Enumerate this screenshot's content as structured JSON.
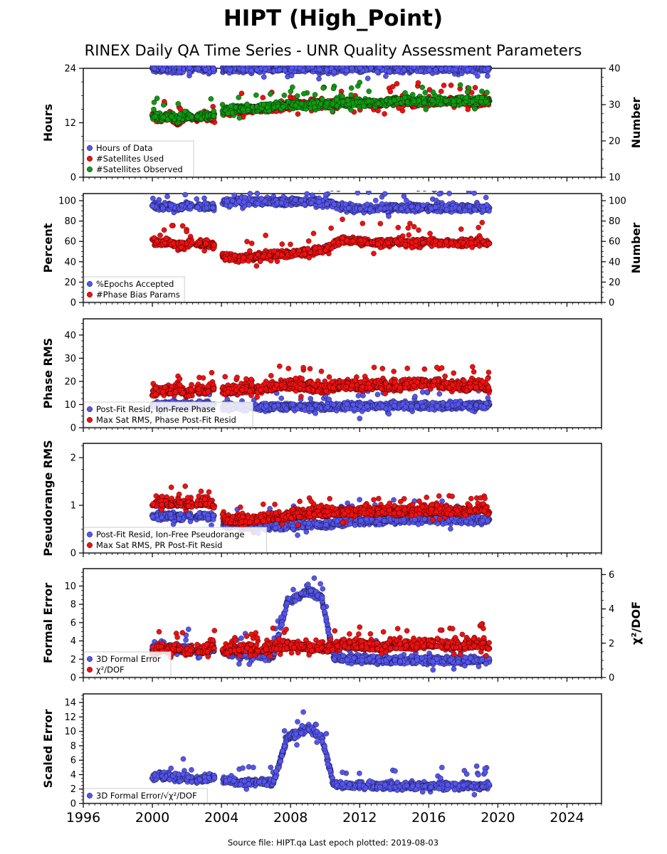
{
  "title": "HIPT (High_Point)",
  "subtitle": "RINEX Daily QA Time Series - UNR Quality Assessment Parameters",
  "footer": "Source file: HIPT.qa Last epoch plotted: 2019-08-03",
  "colors": {
    "blue": "#5555ee",
    "red": "#ee1111",
    "green": "#119911",
    "edge": "#000000"
  },
  "chart_data": [
    {
      "type": "scatter",
      "x_label_ticks": [
        "1996",
        "2000",
        "2004",
        "2008",
        "2012",
        "2016",
        "2020",
        "2024"
      ],
      "xlim": [
        1996,
        2026
      ],
      "ylabel": "Hours",
      "ylim": [
        0,
        24
      ],
      "yticks": [
        "0",
        "12",
        "24"
      ],
      "y2label": "Number",
      "y2lim": [
        10,
        40
      ],
      "y2ticks": [
        "10",
        "20",
        "30",
        "40"
      ],
      "legend": [
        "Hours of Data",
        "#Satellites Used",
        "#Satellites Observed"
      ],
      "legend_position": "lower-left",
      "series": [
        {
          "name": "Hours of Data",
          "color": "blue",
          "axis": "left",
          "x": [
            2000.0,
            2000.5,
            2001.0,
            2001.5,
            2002.0,
            2002.5,
            2003.0,
            2003.5,
            2004.2,
            2005.0,
            2006.0,
            2007.0,
            2008.0,
            2009.0,
            2010.0,
            2011.0,
            2012.0,
            2013.0,
            2014.0,
            2015.0,
            2016.0,
            2017.0,
            2018.0,
            2019.0,
            2019.5
          ],
          "y": [
            24,
            23.8,
            24,
            23.5,
            24,
            23.9,
            24,
            23.7,
            24,
            24,
            23.8,
            24,
            23.9,
            24,
            23.6,
            24,
            23.8,
            24,
            23.9,
            24,
            23.7,
            24,
            24,
            23.9,
            24
          ]
        },
        {
          "name": "#Satellites Used",
          "color": "red",
          "axis": "right",
          "x": [
            2000.0,
            2000.5,
            2001.0,
            2001.5,
            2002.0,
            2002.5,
            2003.0,
            2003.5,
            2004.2,
            2005.0,
            2006.0,
            2007.0,
            2008.0,
            2009.0,
            2010.0,
            2011.0,
            2012.0,
            2013.0,
            2014.0,
            2015.0,
            2016.0,
            2017.0,
            2018.0,
            2019.0,
            2019.5
          ],
          "y": [
            27,
            26,
            27,
            25,
            27,
            26,
            27,
            26,
            28,
            28.5,
            29,
            29,
            30,
            30,
            30,
            30.5,
            30.5,
            30,
            31,
            30.5,
            30.5,
            31,
            31,
            30.5,
            31
          ]
        },
        {
          "name": "#Satellites Observed",
          "color": "green",
          "axis": "right",
          "x": [
            2000.0,
            2000.5,
            2001.0,
            2001.5,
            2002.0,
            2002.5,
            2003.0,
            2003.5,
            2004.2,
            2005.0,
            2006.0,
            2007.0,
            2008.0,
            2009.0,
            2010.0,
            2011.0,
            2012.0,
            2013.0,
            2014.0,
            2015.0,
            2016.0,
            2017.0,
            2018.0,
            2019.0,
            2019.5
          ],
          "y": [
            27,
            26.5,
            27,
            26,
            27,
            26.5,
            27,
            27,
            28.5,
            29,
            29,
            29.5,
            30,
            30,
            30,
            30.5,
            30.5,
            30.5,
            31,
            31,
            31,
            31,
            31,
            31,
            31
          ]
        }
      ]
    },
    {
      "type": "scatter",
      "x_label_ticks": [
        "1996",
        "2000",
        "2004",
        "2008",
        "2012",
        "2016",
        "2020",
        "2024"
      ],
      "xlim": [
        1996,
        2026
      ],
      "ylabel": "Percent",
      "ylim": [
        0,
        107
      ],
      "yticks": [
        "0",
        "20",
        "40",
        "60",
        "80",
        "100"
      ],
      "y2label": "Number",
      "y2lim": [
        0,
        107
      ],
      "y2ticks": [
        "0",
        "20",
        "40",
        "60",
        "80",
        "100"
      ],
      "legend": [
        "%Epochs Accepted",
        "#Phase Bias Params"
      ],
      "legend_position": "lower-left",
      "series": [
        {
          "name": "%Epochs Accepted",
          "color": "blue",
          "axis": "left",
          "x": [
            2000.0,
            2000.5,
            2001.0,
            2001.5,
            2002.0,
            2002.5,
            2003.0,
            2003.5,
            2004.2,
            2005.0,
            2006.0,
            2007.0,
            2008.0,
            2009.0,
            2010.0,
            2011.0,
            2012.0,
            2013.0,
            2014.0,
            2015.0,
            2016.0,
            2017.0,
            2018.0,
            2019.0,
            2019.5
          ],
          "y": [
            95,
            94,
            95,
            93,
            95,
            94,
            95,
            94,
            99,
            99,
            99,
            99,
            99,
            99,
            98,
            93,
            93,
            92,
            93,
            93,
            93,
            93,
            93,
            93,
            93
          ]
        },
        {
          "name": "#Phase Bias Params",
          "color": "red",
          "axis": "right",
          "x": [
            2000.0,
            2000.5,
            2001.0,
            2001.5,
            2002.0,
            2002.5,
            2003.0,
            2003.5,
            2004.2,
            2005.0,
            2006.0,
            2007.0,
            2008.0,
            2009.0,
            2010.0,
            2011.0,
            2012.0,
            2013.0,
            2014.0,
            2015.0,
            2016.0,
            2017.0,
            2018.0,
            2019.0,
            2019.5
          ],
          "y": [
            62,
            58,
            60,
            55,
            58,
            57,
            58,
            56,
            45,
            44,
            45,
            47,
            48,
            50,
            52,
            62,
            60,
            58,
            60,
            58,
            60,
            58,
            58,
            60,
            58
          ]
        }
      ]
    },
    {
      "type": "scatter",
      "x_label_ticks": [
        "1996",
        "2000",
        "2004",
        "2008",
        "2012",
        "2016",
        "2020",
        "2024"
      ],
      "xlim": [
        1996,
        2026
      ],
      "ylabel": "Phase RMS",
      "ylim": [
        0,
        47
      ],
      "yticks": [
        "0",
        "10",
        "20",
        "30",
        "40"
      ],
      "legend": [
        "Post-Fit Resid, Ion-Free Phase",
        "Max Sat RMS, Phase Post-Fit Resid"
      ],
      "legend_position": "lower-left",
      "series": [
        {
          "name": "Post-Fit Resid, Ion-Free Phase",
          "color": "blue",
          "axis": "left",
          "x": [
            2000.0,
            2000.5,
            2001.0,
            2001.5,
            2002.0,
            2002.5,
            2003.0,
            2003.5,
            2004.2,
            2005.0,
            2006.0,
            2007.0,
            2008.0,
            2009.0,
            2010.0,
            2011.0,
            2012.0,
            2013.0,
            2014.0,
            2015.0,
            2016.0,
            2017.0,
            2018.0,
            2019.0,
            2019.5
          ],
          "y": [
            10,
            9.5,
            10,
            9.5,
            10,
            9.5,
            10,
            9.5,
            9,
            9,
            9,
            9,
            9,
            9,
            9,
            9.5,
            9.5,
            9.5,
            9.5,
            9.5,
            9.5,
            9.5,
            9.5,
            9.5,
            10
          ]
        },
        {
          "name": "Max Sat RMS, Phase Post-Fit Resid",
          "color": "red",
          "axis": "left",
          "x": [
            2000.0,
            2000.5,
            2001.0,
            2001.5,
            2002.0,
            2002.5,
            2003.0,
            2003.5,
            2004.2,
            2005.0,
            2006.0,
            2007.0,
            2008.0,
            2009.0,
            2010.0,
            2011.0,
            2012.0,
            2013.0,
            2014.0,
            2015.0,
            2016.0,
            2017.0,
            2018.0,
            2019.0,
            2019.5
          ],
          "y": [
            14,
            16,
            15,
            17,
            14,
            16,
            15,
            17,
            15,
            16,
            16,
            17,
            18,
            17,
            16,
            18,
            17,
            18,
            17,
            18,
            19,
            18,
            17,
            18,
            16
          ]
        }
      ]
    },
    {
      "type": "scatter",
      "x_label_ticks": [
        "1996",
        "2000",
        "2004",
        "2008",
        "2012",
        "2016",
        "2020",
        "2024"
      ],
      "xlim": [
        1996,
        2026
      ],
      "ylabel": "Pseudorange RMS",
      "ylim": [
        0,
        2.3
      ],
      "yticks": [
        "0",
        "1",
        "2"
      ],
      "legend": [
        "Post-Fit Resid, Ion-Free Pseudorange",
        "Max Sat RMS, PR Post-Fit Resid"
      ],
      "legend_position": "lower-left",
      "series": [
        {
          "name": "Post-Fit Resid, Ion-Free Pseudorange",
          "color": "blue",
          "axis": "left",
          "x": [
            2000.0,
            2000.5,
            2001.0,
            2001.5,
            2002.0,
            2002.5,
            2003.0,
            2003.5,
            2004.2,
            2005.0,
            2006.0,
            2007.0,
            2008.0,
            2009.0,
            2010.0,
            2011.0,
            2012.0,
            2013.0,
            2014.0,
            2015.0,
            2016.0,
            2017.0,
            2018.0,
            2019.0,
            2019.5
          ],
          "y": [
            0.78,
            0.76,
            0.78,
            0.75,
            0.78,
            0.76,
            0.78,
            0.75,
            0.6,
            0.58,
            0.57,
            0.56,
            0.56,
            0.58,
            0.6,
            0.65,
            0.67,
            0.68,
            0.69,
            0.7,
            0.7,
            0.7,
            0.7,
            0.7,
            0.7
          ]
        },
        {
          "name": "Max Sat RMS, PR Post-Fit Resid",
          "color": "red",
          "axis": "left",
          "x": [
            2000.0,
            2000.5,
            2001.0,
            2001.5,
            2002.0,
            2002.5,
            2003.0,
            2003.5,
            2004.2,
            2005.0,
            2006.0,
            2007.0,
            2008.0,
            2009.0,
            2010.0,
            2011.0,
            2012.0,
            2013.0,
            2014.0,
            2015.0,
            2016.0,
            2017.0,
            2018.0,
            2019.0,
            2019.5
          ],
          "y": [
            1.0,
            1.05,
            1.0,
            1.05,
            1.0,
            1.0,
            1.05,
            1.0,
            0.65,
            0.65,
            0.68,
            0.72,
            0.75,
            0.8,
            0.82,
            0.82,
            0.84,
            0.85,
            0.85,
            0.85,
            0.85,
            0.85,
            0.85,
            0.9,
            0.85
          ]
        }
      ]
    },
    {
      "type": "scatter",
      "x_label_ticks": [
        "1996",
        "2000",
        "2004",
        "2008",
        "2012",
        "2016",
        "2020",
        "2024"
      ],
      "xlim": [
        1996,
        2026
      ],
      "ylabel": "Formal Error",
      "ylim": [
        0,
        11.9
      ],
      "yticks": [
        "0",
        "2",
        "4",
        "6",
        "8",
        "10"
      ],
      "y2label": "χ²/DOF",
      "y2lim": [
        0,
        6.35
      ],
      "y2ticks": [
        "0",
        "2",
        "4",
        "6"
      ],
      "legend": [
        "3D Formal Error",
        "χ²/DOF"
      ],
      "legend_position": "lower-left",
      "series": [
        {
          "name": "3D Formal Error",
          "color": "blue",
          "axis": "left",
          "x": [
            2000.0,
            2000.5,
            2001.0,
            2001.5,
            2002.0,
            2002.5,
            2003.0,
            2003.5,
            2004.2,
            2005.0,
            2006.0,
            2007.0,
            2007.8,
            2008.2,
            2008.6,
            2009.0,
            2009.4,
            2009.8,
            2010.5,
            2011.0,
            2012.0,
            2013.0,
            2014.0,
            2015.0,
            2016.0,
            2017.0,
            2018.0,
            2019.0,
            2019.5
          ],
          "y": [
            3.0,
            3.5,
            3.2,
            3.0,
            3.2,
            2.8,
            3.0,
            3.2,
            2.8,
            2.5,
            2.5,
            2.3,
            8.2,
            8.6,
            9.0,
            9.5,
            9.2,
            8.8,
            2.2,
            2.0,
            2.0,
            1.9,
            1.9,
            1.9,
            1.9,
            1.9,
            1.9,
            1.9,
            1.9
          ]
        },
        {
          "name": "χ²/DOF",
          "color": "red",
          "axis": "right",
          "x": [
            2000.0,
            2000.5,
            2001.0,
            2001.5,
            2002.0,
            2002.5,
            2003.0,
            2003.5,
            2004.2,
            2005.0,
            2006.0,
            2007.0,
            2008.0,
            2009.0,
            2010.0,
            2011.0,
            2012.0,
            2013.0,
            2014.0,
            2015.0,
            2016.0,
            2017.0,
            2018.0,
            2019.0,
            2019.5
          ],
          "y": [
            1.4,
            1.6,
            1.5,
            1.7,
            1.4,
            1.6,
            1.5,
            1.8,
            1.5,
            1.6,
            1.6,
            1.7,
            1.8,
            1.7,
            1.6,
            1.8,
            1.8,
            1.7,
            1.8,
            1.8,
            1.9,
            1.8,
            1.8,
            1.9,
            1.7
          ]
        }
      ]
    },
    {
      "type": "scatter",
      "x_label_ticks": [
        "1996",
        "2000",
        "2004",
        "2008",
        "2012",
        "2016",
        "2020",
        "2024"
      ],
      "xlim": [
        1996,
        2026
      ],
      "ylabel": "Scaled Error",
      "ylim": [
        0,
        15.2
      ],
      "yticks": [
        "0",
        "2",
        "4",
        "6",
        "8",
        "10",
        "12",
        "14"
      ],
      "legend": [
        "3D Formal Error/√χ²/DOF"
      ],
      "legend_position": "lower-left",
      "series": [
        {
          "name": "3D Formal Error/√χ²/DOF",
          "color": "blue",
          "axis": "left",
          "x": [
            2000.0,
            2000.5,
            2001.0,
            2001.5,
            2002.0,
            2002.5,
            2003.0,
            2003.5,
            2004.2,
            2005.0,
            2006.0,
            2007.0,
            2007.8,
            2008.2,
            2008.6,
            2009.0,
            2009.4,
            2009.8,
            2010.5,
            2011.0,
            2012.0,
            2013.0,
            2014.0,
            2015.0,
            2016.0,
            2017.0,
            2018.0,
            2019.0,
            2019.5
          ],
          "y": [
            3.5,
            4.0,
            3.8,
            3.5,
            3.6,
            3.2,
            3.5,
            3.6,
            3.2,
            3.0,
            3.0,
            2.8,
            9.0,
            9.5,
            10.0,
            10.5,
            9.8,
            9.2,
            2.7,
            2.5,
            2.5,
            2.4,
            2.4,
            2.4,
            2.4,
            2.4,
            2.4,
            2.4,
            2.5
          ]
        }
      ]
    }
  ]
}
